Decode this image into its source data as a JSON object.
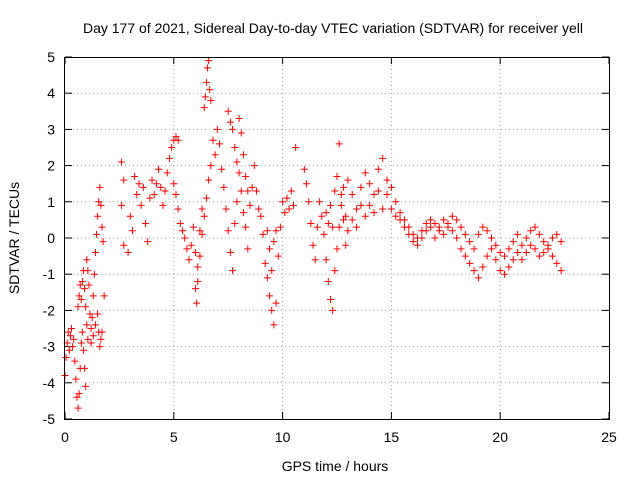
{
  "chart_data": {
    "type": "scatter",
    "title": "Day 177 of 2021, Sidereal Day-to-day VTEC variation (SDTVAR) for receiver yell",
    "xlabel": "GPS time / hours",
    "ylabel": "SDTVAR / TECUs",
    "xlim": [
      0,
      25
    ],
    "ylim": [
      -5,
      5
    ],
    "xticks": [
      0,
      5,
      10,
      15,
      20,
      25
    ],
    "yticks": [
      -5,
      -4,
      -3,
      -2,
      -1,
      0,
      1,
      2,
      3,
      4,
      5
    ],
    "grid": true,
    "marker": "plus",
    "color": "#ff0000",
    "series": [
      {
        "name": "SDTVAR",
        "points": [
          [
            0.0,
            -3.8
          ],
          [
            0.05,
            -3.3
          ],
          [
            0.1,
            -2.9
          ],
          [
            0.15,
            -2.6
          ],
          [
            0.2,
            -3.1
          ],
          [
            0.25,
            -2.7
          ],
          [
            0.3,
            -2.5
          ],
          [
            0.35,
            -3.0
          ],
          [
            0.4,
            -2.8
          ],
          [
            0.45,
            -3.4
          ],
          [
            0.5,
            -3.9
          ],
          [
            0.55,
            -4.4
          ],
          [
            0.6,
            -4.7
          ],
          [
            0.65,
            -4.3
          ],
          [
            0.7,
            -3.6
          ],
          [
            0.75,
            -2.9
          ],
          [
            0.8,
            -2.6
          ],
          [
            0.85,
            -3.1
          ],
          [
            0.9,
            -3.6
          ],
          [
            0.95,
            -4.1
          ],
          [
            0.6,
            -1.9
          ],
          [
            0.65,
            -1.6
          ],
          [
            0.7,
            -1.3
          ],
          [
            0.75,
            -1.7
          ],
          [
            0.8,
            -1.2
          ],
          [
            0.85,
            -0.9
          ],
          [
            0.9,
            -1.4
          ],
          [
            0.95,
            -1.9
          ],
          [
            1.0,
            -2.4
          ],
          [
            1.05,
            -2.8
          ],
          [
            1.0,
            -0.6
          ],
          [
            1.05,
            -0.9
          ],
          [
            1.1,
            -1.3
          ],
          [
            1.15,
            -2.1
          ],
          [
            1.2,
            -2.5
          ],
          [
            1.25,
            -2.2
          ],
          [
            1.3,
            -1.6
          ],
          [
            1.35,
            -1.0
          ],
          [
            1.4,
            -0.4
          ],
          [
            1.45,
            0.1
          ],
          [
            1.2,
            -2.9
          ],
          [
            1.3,
            -2.7
          ],
          [
            1.4,
            -2.4
          ],
          [
            1.5,
            -2.1
          ],
          [
            1.55,
            -2.6
          ],
          [
            1.6,
            -3.0
          ],
          [
            1.65,
            -2.8
          ],
          [
            1.7,
            -2.6
          ],
          [
            1.5,
            0.6
          ],
          [
            1.55,
            1.0
          ],
          [
            1.6,
            1.4
          ],
          [
            1.65,
            0.9
          ],
          [
            1.7,
            0.3
          ],
          [
            1.75,
            -0.1
          ],
          [
            1.8,
            -1.6
          ],
          [
            2.6,
            2.1
          ],
          [
            2.7,
            1.6
          ],
          [
            2.6,
            0.9
          ],
          [
            2.7,
            -0.2
          ],
          [
            2.9,
            -0.4
          ],
          [
            3.0,
            0.6
          ],
          [
            3.1,
            0.2
          ],
          [
            3.2,
            1.7
          ],
          [
            3.3,
            1.2
          ],
          [
            3.4,
            1.5
          ],
          [
            3.5,
            0.9
          ],
          [
            3.6,
            1.4
          ],
          [
            3.7,
            0.4
          ],
          [
            3.8,
            -0.1
          ],
          [
            3.9,
            1.1
          ],
          [
            4.0,
            1.6
          ],
          [
            4.1,
            1.2
          ],
          [
            4.2,
            1.5
          ],
          [
            4.3,
            1.9
          ],
          [
            4.4,
            1.4
          ],
          [
            4.5,
            0.9
          ],
          [
            4.6,
            1.3
          ],
          [
            4.7,
            1.8
          ],
          [
            4.8,
            2.2
          ],
          [
            4.9,
            2.5
          ],
          [
            5.0,
            2.7
          ],
          [
            5.1,
            2.8
          ],
          [
            5.2,
            2.7
          ],
          [
            5.0,
            1.5
          ],
          [
            5.1,
            1.2
          ],
          [
            5.2,
            0.8
          ],
          [
            5.3,
            0.4
          ],
          [
            5.4,
            0.2
          ],
          [
            5.5,
            0.0
          ],
          [
            5.6,
            -0.3
          ],
          [
            5.7,
            -0.6
          ],
          [
            5.8,
            -0.2
          ],
          [
            5.9,
            0.3
          ],
          [
            6.0,
            -0.4
          ],
          [
            6.1,
            -0.8
          ],
          [
            6.2,
            -0.5
          ],
          [
            6.3,
            0.1
          ],
          [
            6.4,
            0.6
          ],
          [
            6.5,
            1.1
          ],
          [
            6.6,
            1.6
          ],
          [
            6.7,
            2.0
          ],
          [
            6.8,
            2.7
          ],
          [
            6.9,
            2.3
          ],
          [
            6.0,
            -1.4
          ],
          [
            6.05,
            -1.8
          ],
          [
            6.1,
            -1.2
          ],
          [
            6.2,
            0.2
          ],
          [
            6.3,
            0.8
          ],
          [
            6.4,
            3.6
          ],
          [
            6.45,
            3.9
          ],
          [
            6.5,
            4.3
          ],
          [
            6.55,
            4.7
          ],
          [
            6.6,
            4.9
          ],
          [
            6.65,
            4.1
          ],
          [
            6.7,
            3.8
          ],
          [
            7.0,
            3.0
          ],
          [
            7.1,
            2.6
          ],
          [
            7.2,
            1.9
          ],
          [
            7.3,
            1.4
          ],
          [
            7.4,
            0.8
          ],
          [
            7.5,
            0.2
          ],
          [
            7.6,
            -0.4
          ],
          [
            7.7,
            -0.9
          ],
          [
            7.8,
            0.4
          ],
          [
            7.9,
            1.0
          ],
          [
            7.5,
            3.5
          ],
          [
            7.6,
            3.2
          ],
          [
            7.7,
            3.0
          ],
          [
            7.8,
            2.5
          ],
          [
            7.9,
            2.1
          ],
          [
            8.0,
            3.3
          ],
          [
            8.1,
            2.9
          ],
          [
            8.2,
            2.3
          ],
          [
            8.3,
            1.7
          ],
          [
            8.4,
            1.3
          ],
          [
            8.0,
            1.8
          ],
          [
            8.1,
            1.3
          ],
          [
            8.2,
            0.7
          ],
          [
            8.3,
            0.3
          ],
          [
            8.4,
            -0.3
          ],
          [
            8.5,
            0.9
          ],
          [
            8.6,
            1.4
          ],
          [
            8.7,
            2.0
          ],
          [
            8.8,
            1.3
          ],
          [
            8.9,
            0.8
          ],
          [
            9.0,
            0.6
          ],
          [
            9.1,
            0.1
          ],
          [
            9.2,
            -0.7
          ],
          [
            9.3,
            -1.1
          ],
          [
            9.4,
            -1.6
          ],
          [
            9.5,
            -2.0
          ],
          [
            9.6,
            -2.4
          ],
          [
            9.7,
            -1.8
          ],
          [
            9.8,
            -0.5
          ],
          [
            9.9,
            0.3
          ],
          [
            9.3,
            0.2
          ],
          [
            9.4,
            -0.3
          ],
          [
            9.5,
            -0.9
          ],
          [
            9.6,
            -0.1
          ],
          [
            9.7,
            0.2
          ],
          [
            10.0,
            1.0
          ],
          [
            10.1,
            0.7
          ],
          [
            10.2,
            1.1
          ],
          [
            10.3,
            0.8
          ],
          [
            10.4,
            1.3
          ],
          [
            10.5,
            0.9
          ],
          [
            10.6,
            2.5
          ],
          [
            11.0,
            1.9
          ],
          [
            11.1,
            1.5
          ],
          [
            11.2,
            1.0
          ],
          [
            11.3,
            0.4
          ],
          [
            11.4,
            -0.2
          ],
          [
            11.5,
            -0.6
          ],
          [
            11.6,
            0.3
          ],
          [
            11.7,
            1.0
          ],
          [
            11.8,
            0.6
          ],
          [
            11.9,
            0.1
          ],
          [
            12.0,
            -0.6
          ],
          [
            12.1,
            -1.2
          ],
          [
            12.2,
            -1.7
          ],
          [
            12.3,
            -2.0
          ],
          [
            12.4,
            -0.9
          ],
          [
            12.5,
            -0.3
          ],
          [
            12.6,
            0.3
          ],
          [
            12.7,
            0.9
          ],
          [
            12.8,
            1.4
          ],
          [
            12.9,
            0.6
          ],
          [
            12.0,
            0.7
          ],
          [
            12.1,
            0.4
          ],
          [
            12.2,
            0.9
          ],
          [
            12.3,
            0.3
          ],
          [
            12.4,
            1.3
          ],
          [
            12.5,
            1.7
          ],
          [
            12.6,
            2.6
          ],
          [
            12.7,
            1.2
          ],
          [
            12.8,
            0.5
          ],
          [
            12.9,
            -0.2
          ],
          [
            13.0,
            1.6
          ],
          [
            13.2,
            1.2
          ],
          [
            13.4,
            0.8
          ],
          [
            13.6,
            1.4
          ],
          [
            13.8,
            1.8
          ],
          [
            14.0,
            1.5
          ],
          [
            14.2,
            1.2
          ],
          [
            14.4,
            1.9
          ],
          [
            14.6,
            2.2
          ],
          [
            14.8,
            1.6
          ],
          [
            13.0,
            0.2
          ],
          [
            13.2,
            0.5
          ],
          [
            13.4,
            0.3
          ],
          [
            13.6,
            0.9
          ],
          [
            13.8,
            0.6
          ],
          [
            14.0,
            0.9
          ],
          [
            14.2,
            0.7
          ],
          [
            14.4,
            1.3
          ],
          [
            14.6,
            0.8
          ],
          [
            14.8,
            1.2
          ],
          [
            15.0,
            1.4
          ],
          [
            15.2,
            1.0
          ],
          [
            15.4,
            0.7
          ],
          [
            15.6,
            0.5
          ],
          [
            15.8,
            0.3
          ],
          [
            16.0,
            0.1
          ],
          [
            16.2,
            0.0
          ],
          [
            16.4,
            0.2
          ],
          [
            16.6,
            0.4
          ],
          [
            16.8,
            0.5
          ],
          [
            15.0,
            0.8
          ],
          [
            15.2,
            0.6
          ],
          [
            15.4,
            0.5
          ],
          [
            15.6,
            0.3
          ],
          [
            15.8,
            0.1
          ],
          [
            16.0,
            -0.1
          ],
          [
            16.2,
            -0.2
          ],
          [
            16.4,
            0.0
          ],
          [
            16.6,
            0.2
          ],
          [
            16.8,
            0.3
          ],
          [
            17.0,
            0.4
          ],
          [
            17.2,
            0.3
          ],
          [
            17.4,
            0.5
          ],
          [
            17.6,
            0.4
          ],
          [
            17.8,
            0.6
          ],
          [
            18.0,
            0.5
          ],
          [
            18.2,
            0.3
          ],
          [
            18.4,
            0.1
          ],
          [
            18.6,
            -0.1
          ],
          [
            18.8,
            -0.3
          ],
          [
            17.0,
            0.0
          ],
          [
            17.2,
            0.2
          ],
          [
            17.4,
            0.1
          ],
          [
            17.6,
            0.3
          ],
          [
            17.8,
            0.2
          ],
          [
            18.0,
            0.0
          ],
          [
            18.2,
            -0.3
          ],
          [
            18.4,
            -0.5
          ],
          [
            18.6,
            -0.7
          ],
          [
            18.8,
            -0.9
          ],
          [
            19.0,
            -1.1
          ],
          [
            19.2,
            -0.8
          ],
          [
            19.4,
            -0.5
          ],
          [
            19.6,
            -0.3
          ],
          [
            19.8,
            -0.6
          ],
          [
            20.0,
            -0.9
          ],
          [
            20.2,
            -1.0
          ],
          [
            20.4,
            -0.8
          ],
          [
            20.6,
            -0.6
          ],
          [
            20.8,
            -0.4
          ],
          [
            19.0,
            0.1
          ],
          [
            19.2,
            0.3
          ],
          [
            19.4,
            0.2
          ],
          [
            19.6,
            0.0
          ],
          [
            19.8,
            -0.2
          ],
          [
            20.0,
            -0.4
          ],
          [
            20.2,
            -0.5
          ],
          [
            20.4,
            -0.3
          ],
          [
            20.6,
            -0.1
          ],
          [
            20.8,
            0.1
          ],
          [
            21.0,
            -0.2
          ],
          [
            21.2,
            0.0
          ],
          [
            21.4,
            0.2
          ],
          [
            21.6,
            0.3
          ],
          [
            21.8,
            0.1
          ],
          [
            22.0,
            -0.1
          ],
          [
            22.2,
            -0.3
          ],
          [
            22.4,
            -0.5
          ],
          [
            22.6,
            -0.7
          ],
          [
            22.8,
            -0.9
          ],
          [
            21.0,
            -0.6
          ],
          [
            21.2,
            -0.4
          ],
          [
            21.4,
            -0.2
          ],
          [
            21.6,
            -0.3
          ],
          [
            21.8,
            -0.5
          ],
          [
            22.0,
            -0.4
          ],
          [
            22.2,
            -0.2
          ],
          [
            22.4,
            0.0
          ],
          [
            22.6,
            0.1
          ],
          [
            22.8,
            -0.1
          ]
        ]
      }
    ]
  }
}
